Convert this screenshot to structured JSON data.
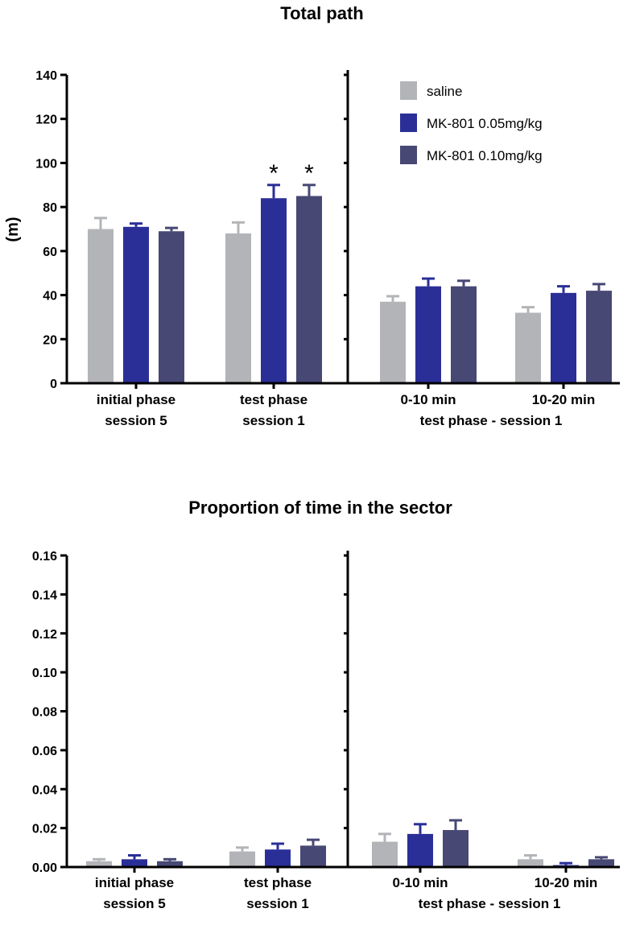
{
  "colors": {
    "saline": "#b2b4b8",
    "mk05": "#2a2f98",
    "mk10": "#474874",
    "axis": "#000000"
  },
  "chart_data": [
    {
      "type": "bar",
      "title": "Total path",
      "ylabel": "(m)",
      "xlabel": "",
      "ylim": [
        0,
        140
      ],
      "yticks": [
        "0",
        "20",
        "40",
        "60",
        "80",
        "100",
        "120",
        "140"
      ],
      "ytick_values": [
        0,
        20,
        40,
        60,
        80,
        100,
        120,
        140
      ],
      "legend": {
        "placement": "top-right",
        "entries": [
          {
            "name": "saline",
            "color_key": "saline"
          },
          {
            "name": "MK-801 0.05mg/kg",
            "color_key": "mk05"
          },
          {
            "name": "MK-801 0.10mg/kg",
            "color_key": "mk10"
          }
        ]
      },
      "categories": [
        {
          "lines": [
            "initial phase",
            "session 5"
          ],
          "panel": "left"
        },
        {
          "lines": [
            "test phase",
            "session 1"
          ],
          "panel": "left"
        },
        {
          "lines": [
            "0-10 min",
            ""
          ],
          "panel": "right"
        },
        {
          "lines": [
            "10-20 min",
            ""
          ],
          "panel": "right"
        }
      ],
      "group_label": "test phase - session 1",
      "series": [
        {
          "name": "saline",
          "color_key": "saline",
          "values": [
            70,
            68,
            37,
            32
          ],
          "errors": [
            5,
            5,
            2.5,
            2.5
          ]
        },
        {
          "name": "MK-801 0.05mg/kg",
          "color_key": "mk05",
          "values": [
            71,
            84,
            44,
            41
          ],
          "errors": [
            1.5,
            6,
            3.5,
            3
          ]
        },
        {
          "name": "MK-801 0.10mg/kg",
          "color_key": "mk10",
          "values": [
            69,
            85,
            44,
            42
          ],
          "errors": [
            1.5,
            5,
            2.5,
            3
          ]
        }
      ],
      "annotations": [
        {
          "text": "*",
          "series": 1,
          "category": 1
        },
        {
          "text": "*",
          "series": 2,
          "category": 1
        }
      ]
    },
    {
      "type": "bar",
      "title": "Proportion of time in the sector",
      "ylabel": "",
      "xlabel": "",
      "ylim": [
        0,
        0.16
      ],
      "yticks": [
        "0.00",
        "0.02",
        "0.04",
        "0.06",
        "0.08",
        "0.10",
        "0.12",
        "0.14",
        "0.16"
      ],
      "ytick_values": [
        0,
        0.02,
        0.04,
        0.06,
        0.08,
        0.1,
        0.12,
        0.14,
        0.16
      ],
      "categories": [
        {
          "lines": [
            "initial phase",
            "session 5"
          ],
          "panel": "left"
        },
        {
          "lines": [
            "test phase",
            "session 1"
          ],
          "panel": "left"
        },
        {
          "lines": [
            "0-10 min",
            ""
          ],
          "panel": "right"
        },
        {
          "lines": [
            "10-20 min",
            ""
          ],
          "panel": "right"
        }
      ],
      "group_label": "test phase - session 1",
      "series": [
        {
          "name": "saline",
          "color_key": "saline",
          "values": [
            0.003,
            0.008,
            0.013,
            0.004
          ],
          "errors": [
            0.001,
            0.002,
            0.004,
            0.002
          ]
        },
        {
          "name": "MK-801 0.05mg/kg",
          "color_key": "mk05",
          "values": [
            0.004,
            0.009,
            0.017,
            0.001
          ],
          "errors": [
            0.002,
            0.003,
            0.005,
            0.001
          ]
        },
        {
          "name": "MK-801 0.10mg/kg",
          "color_key": "mk10",
          "values": [
            0.003,
            0.011,
            0.019,
            0.004
          ],
          "errors": [
            0.001,
            0.003,
            0.005,
            0.001
          ]
        }
      ],
      "annotations": []
    }
  ]
}
